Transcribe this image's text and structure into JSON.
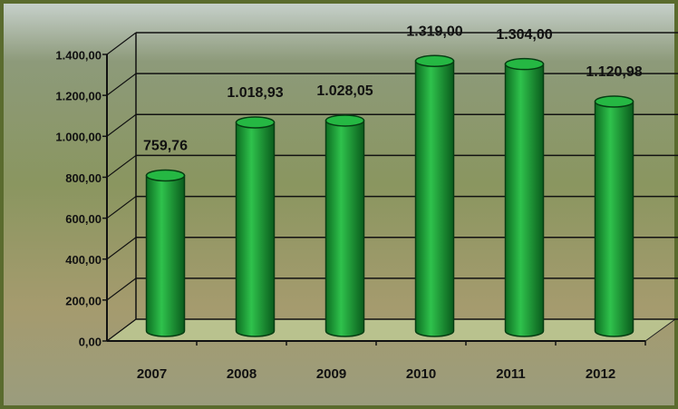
{
  "chart_data": {
    "type": "bar",
    "categories": [
      "2007",
      "2008",
      "2009",
      "2010",
      "2011",
      "2012"
    ],
    "values": [
      759.76,
      1018.93,
      1028.05,
      1319,
      1304,
      1120.98
    ],
    "value_labels": [
      "759,76",
      "1.018,93",
      "1.028,05",
      "1.319,00",
      "1.304,00",
      "1.120,98"
    ],
    "color": "#1fa43a",
    "ylim": [
      0,
      1400
    ],
    "yticks": [
      {
        "value": 0,
        "label": "0,00"
      },
      {
        "value": 200,
        "label": "200,00"
      },
      {
        "value": 400,
        "label": "400,00"
      },
      {
        "value": 600,
        "label": "600,00"
      },
      {
        "value": 800,
        "label": "800,00"
      },
      {
        "value": 1000,
        "label": "1.000,00"
      },
      {
        "value": 1200,
        "label": "1.200,00"
      },
      {
        "value": 1400,
        "label": "1.400,00"
      }
    ],
    "grid": true
  }
}
